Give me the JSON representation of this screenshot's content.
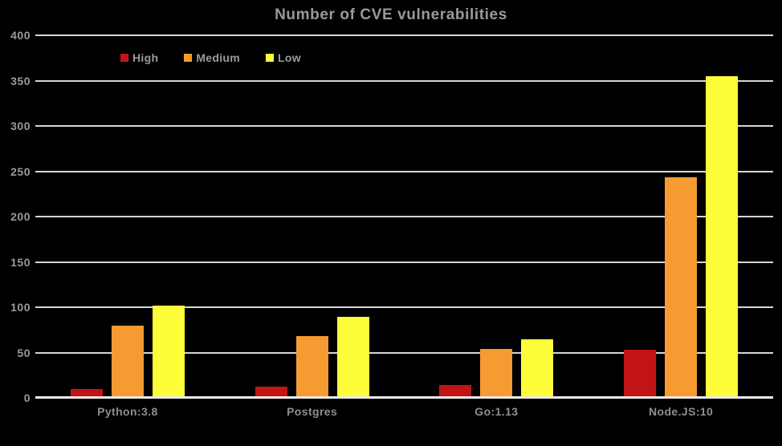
{
  "chart_data": {
    "type": "bar",
    "title": "Number of CVE vulnerabilities",
    "categories": [
      "Python:3.8",
      "Postgres",
      "Go:1.13",
      "Node.JS:10"
    ],
    "series": [
      {
        "name": "High",
        "color": "#c21414",
        "values": [
          10,
          12,
          14,
          53
        ]
      },
      {
        "name": "Medium",
        "color": "#f59b31",
        "values": [
          80,
          68,
          54,
          243
        ]
      },
      {
        "name": "Low",
        "color": "#fdfd3a",
        "values": [
          102,
          89,
          65,
          355
        ]
      }
    ],
    "xlabel": "",
    "ylabel": "",
    "ylim": [
      0,
      400
    ],
    "ytick_step": 50,
    "yticks": [
      "0",
      "50",
      "100",
      "150",
      "200",
      "250",
      "300",
      "350",
      "400"
    ],
    "grid": "horizontal",
    "legend_position": "top-left",
    "colors": {
      "background": "#000000",
      "text": "#9b9b9b",
      "gridline": "#e7e7e5"
    }
  }
}
